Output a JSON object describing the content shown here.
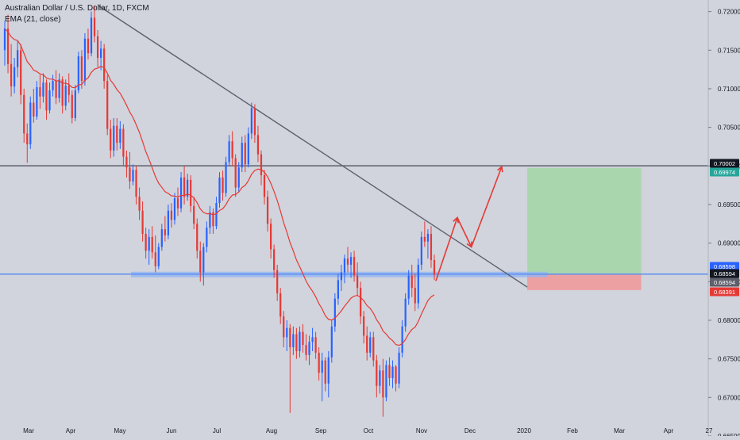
{
  "legend": {
    "title": "Australian Dollar / U.S. Dollar, 1D, FXCM",
    "indicator": "EMA (21, close)"
  },
  "colors": {
    "background": "#d1d4dc",
    "up": "#2962ff",
    "down": "#e53935",
    "ema": "#e53935",
    "trendline": "#5d606b",
    "resistance": "#5d606b",
    "support": "#5b8ef0",
    "support_zone": "#8fb4f5",
    "target_zone": "#a5d6a7",
    "stop_zone": "#ef9a9a",
    "arrow": "#e53935"
  },
  "chart_data": {
    "type": "candlestick",
    "symbol": "AUDUSD",
    "timeframe": "1D",
    "source": "FXCM",
    "x_axis": [
      "Mar",
      "Apr",
      "May",
      "Jun",
      "Jul",
      "Aug",
      "Sep",
      "Oct",
      "Nov",
      "Dec",
      "2020",
      "Feb",
      "Mar",
      "Apr",
      "27"
    ],
    "y_axis": [
      "0.72000",
      "0.71500",
      "0.71000",
      "0.70500",
      "0.70000",
      "0.69500",
      "0.69000",
      "0.68500",
      "0.68000",
      "0.67500",
      "0.67000",
      "0.66500"
    ],
    "ylim": [
      0.665,
      0.7215
    ],
    "price_tags": [
      {
        "label": "0.70002",
        "value": 0.70002,
        "color": "#131722"
      },
      {
        "label": "0.69974",
        "value": 0.69974,
        "color": "#26a69a"
      },
      {
        "label": "0.68598",
        "value": 0.68598,
        "color": "#2962ff"
      },
      {
        "label": "0.68594",
        "value": 0.68594,
        "color": "#131722"
      },
      {
        "label": "0.68594",
        "value": 0.68594,
        "color": "#5d606b"
      },
      {
        "label": "0.68391",
        "value": 0.68391,
        "color": "#e53935"
      }
    ],
    "resistance_level": 0.70002,
    "support_level": 0.68598,
    "trendline": {
      "from": {
        "x": 0.1325,
        "y": 0.7208
      },
      "to": {
        "x": 0.7125,
        "y": 0.6843
      }
    },
    "position": {
      "x_start": 0.7125,
      "x_end": 0.8665,
      "entry": 0.68594,
      "target": 0.69974,
      "stop": 0.68391
    },
    "projected_path": [
      {
        "x": 0.589,
        "y": 0.6851
      },
      {
        "x": 0.618,
        "y": 0.6933
      },
      {
        "x": 0.637,
        "y": 0.6895
      },
      {
        "x": 0.678,
        "y": 0.6999
      }
    ],
    "ema_period": 21,
    "candles": [
      [
        0.715,
        0.7188,
        0.713,
        0.7178
      ],
      [
        0.7178,
        0.7196,
        0.712,
        0.7132
      ],
      [
        0.7132,
        0.7158,
        0.709,
        0.7103
      ],
      [
        0.7103,
        0.714,
        0.7094,
        0.7128
      ],
      [
        0.7128,
        0.7162,
        0.7115,
        0.715
      ],
      [
        0.715,
        0.7158,
        0.708,
        0.7092
      ],
      [
        0.7092,
        0.71,
        0.703,
        0.7042
      ],
      [
        0.7042,
        0.7055,
        0.7004,
        0.7028
      ],
      [
        0.7028,
        0.709,
        0.7022,
        0.7082
      ],
      [
        0.7082,
        0.71,
        0.7056,
        0.7064
      ],
      [
        0.7064,
        0.711,
        0.706,
        0.7102
      ],
      [
        0.7102,
        0.7118,
        0.7074,
        0.709
      ],
      [
        0.709,
        0.712,
        0.7082,
        0.7108
      ],
      [
        0.7108,
        0.7112,
        0.706,
        0.7072
      ],
      [
        0.7072,
        0.7108,
        0.7068,
        0.7098
      ],
      [
        0.7098,
        0.7118,
        0.709,
        0.711
      ],
      [
        0.711,
        0.7124,
        0.708,
        0.7088
      ],
      [
        0.7088,
        0.712,
        0.7082,
        0.7112
      ],
      [
        0.7112,
        0.7116,
        0.7068,
        0.7078
      ],
      [
        0.7078,
        0.7112,
        0.7072,
        0.7104
      ],
      [
        0.7104,
        0.712,
        0.7082,
        0.7092
      ],
      [
        0.7092,
        0.7098,
        0.7055,
        0.7062
      ],
      [
        0.7062,
        0.7105,
        0.7058,
        0.7098
      ],
      [
        0.7098,
        0.7148,
        0.7094,
        0.7142
      ],
      [
        0.7142,
        0.715,
        0.71,
        0.711
      ],
      [
        0.711,
        0.7172,
        0.7104,
        0.7165
      ],
      [
        0.7165,
        0.7178,
        0.7138,
        0.7146
      ],
      [
        0.7146,
        0.72,
        0.7142,
        0.7192
      ],
      [
        0.7192,
        0.7208,
        0.716,
        0.7168
      ],
      [
        0.7168,
        0.7176,
        0.7128,
        0.714
      ],
      [
        0.714,
        0.7162,
        0.7124,
        0.7152
      ],
      [
        0.7152,
        0.7158,
        0.71,
        0.711
      ],
      [
        0.711,
        0.7118,
        0.704,
        0.7048
      ],
      [
        0.7048,
        0.706,
        0.701,
        0.702
      ],
      [
        0.702,
        0.7062,
        0.7012,
        0.7052
      ],
      [
        0.7052,
        0.7062,
        0.702,
        0.703
      ],
      [
        0.703,
        0.7058,
        0.7022,
        0.7048
      ],
      [
        0.7048,
        0.7054,
        0.7,
        0.7012
      ],
      [
        0.7012,
        0.702,
        0.6985,
        0.6998
      ],
      [
        0.6998,
        0.7018,
        0.697,
        0.698
      ],
      [
        0.698,
        0.7002,
        0.6975,
        0.6995
      ],
      [
        0.6995,
        0.7,
        0.695,
        0.696
      ],
      [
        0.696,
        0.6972,
        0.693,
        0.6942
      ],
      [
        0.6942,
        0.6954,
        0.6902,
        0.6912
      ],
      [
        0.6912,
        0.692,
        0.688,
        0.689
      ],
      [
        0.689,
        0.6918,
        0.6872,
        0.6908
      ],
      [
        0.6908,
        0.6922,
        0.688,
        0.6888
      ],
      [
        0.6888,
        0.691,
        0.6862,
        0.687
      ],
      [
        0.687,
        0.69,
        0.6866,
        0.6895
      ],
      [
        0.6895,
        0.6925,
        0.689,
        0.6918
      ],
      [
        0.6918,
        0.6935,
        0.6902,
        0.691
      ],
      [
        0.691,
        0.695,
        0.6905,
        0.6942
      ],
      [
        0.6942,
        0.6952,
        0.692,
        0.693
      ],
      [
        0.693,
        0.6965,
        0.6924,
        0.6958
      ],
      [
        0.6958,
        0.6972,
        0.6935,
        0.6945
      ],
      [
        0.6945,
        0.6992,
        0.694,
        0.6985
      ],
      [
        0.6985,
        0.7,
        0.695,
        0.696
      ],
      [
        0.696,
        0.699,
        0.6955,
        0.6982
      ],
      [
        0.6982,
        0.6988,
        0.694,
        0.6948
      ],
      [
        0.6948,
        0.696,
        0.6918,
        0.6925
      ],
      [
        0.6925,
        0.6932,
        0.688,
        0.689
      ],
      [
        0.689,
        0.6902,
        0.685,
        0.6862
      ],
      [
        0.6862,
        0.69,
        0.6845,
        0.6895
      ],
      [
        0.6895,
        0.6928,
        0.6888,
        0.692
      ],
      [
        0.692,
        0.6948,
        0.6912,
        0.694
      ],
      [
        0.694,
        0.6945,
        0.6912,
        0.6922
      ],
      [
        0.6922,
        0.696,
        0.6918,
        0.6952
      ],
      [
        0.6952,
        0.6992,
        0.6946,
        0.6985
      ],
      [
        0.6985,
        0.6994,
        0.6955,
        0.6965
      ],
      [
        0.6965,
        0.7012,
        0.696,
        0.7005
      ],
      [
        0.7005,
        0.704,
        0.7,
        0.7032
      ],
      [
        0.7032,
        0.7045,
        0.7,
        0.701
      ],
      [
        0.701,
        0.7015,
        0.696,
        0.6972
      ],
      [
        0.6972,
        0.7005,
        0.6966,
        0.6998
      ],
      [
        0.6998,
        0.7038,
        0.6992,
        0.703
      ],
      [
        0.703,
        0.704,
        0.6992,
        0.7002
      ],
      [
        0.7002,
        0.705,
        0.6998,
        0.7042
      ],
      [
        0.7042,
        0.7082,
        0.7035,
        0.7075
      ],
      [
        0.7075,
        0.708,
        0.703,
        0.704
      ],
      [
        0.704,
        0.7052,
        0.7005,
        0.7015
      ],
      [
        0.7015,
        0.702,
        0.6975,
        0.6988
      ],
      [
        0.6988,
        0.6995,
        0.695,
        0.696
      ],
      [
        0.696,
        0.6968,
        0.6915,
        0.6925
      ],
      [
        0.6925,
        0.6932,
        0.688,
        0.6892
      ],
      [
        0.6892,
        0.6898,
        0.6855,
        0.6865
      ],
      [
        0.6865,
        0.6872,
        0.6825,
        0.6835
      ],
      [
        0.6835,
        0.6842,
        0.6795,
        0.6805
      ],
      [
        0.6805,
        0.6812,
        0.6765,
        0.6778
      ],
      [
        0.6778,
        0.68,
        0.676,
        0.679
      ],
      [
        0.679,
        0.6795,
        0.668,
        0.6765
      ],
      [
        0.6765,
        0.6792,
        0.6755,
        0.6782
      ],
      [
        0.6782,
        0.679,
        0.675,
        0.676
      ],
      [
        0.676,
        0.6792,
        0.6752,
        0.6785
      ],
      [
        0.6785,
        0.6795,
        0.6758,
        0.6768
      ],
      [
        0.6768,
        0.6782,
        0.6748,
        0.6755
      ],
      [
        0.6755,
        0.678,
        0.6742,
        0.6772
      ],
      [
        0.6772,
        0.679,
        0.676,
        0.6778
      ],
      [
        0.6778,
        0.6785,
        0.675,
        0.6758
      ],
      [
        0.6758,
        0.6765,
        0.6722,
        0.6732
      ],
      [
        0.6732,
        0.6758,
        0.6695,
        0.6748
      ],
      [
        0.6748,
        0.6752,
        0.6708,
        0.6718
      ],
      [
        0.6718,
        0.676,
        0.67,
        0.6752
      ],
      [
        0.6752,
        0.68,
        0.6745,
        0.6792
      ],
      [
        0.6792,
        0.6835,
        0.6785,
        0.6828
      ],
      [
        0.6828,
        0.686,
        0.682,
        0.6852
      ],
      [
        0.6852,
        0.6872,
        0.6838,
        0.6862
      ],
      [
        0.6862,
        0.6885,
        0.6848,
        0.688
      ],
      [
        0.688,
        0.6895,
        0.6862,
        0.6872
      ],
      [
        0.6872,
        0.6888,
        0.6855,
        0.6882
      ],
      [
        0.6882,
        0.689,
        0.685,
        0.6858
      ],
      [
        0.6858,
        0.6875,
        0.6832,
        0.6842
      ],
      [
        0.6842,
        0.685,
        0.6795,
        0.6805
      ],
      [
        0.6805,
        0.6812,
        0.677,
        0.678
      ],
      [
        0.678,
        0.6792,
        0.6748,
        0.6758
      ],
      [
        0.6758,
        0.6785,
        0.6752,
        0.6778
      ],
      [
        0.6778,
        0.6785,
        0.674,
        0.6748
      ],
      [
        0.6748,
        0.6755,
        0.67,
        0.6715
      ],
      [
        0.6715,
        0.6742,
        0.6705,
        0.6735
      ],
      [
        0.6735,
        0.675,
        0.6675,
        0.67
      ],
      [
        0.67,
        0.6748,
        0.6695,
        0.6742
      ],
      [
        0.6742,
        0.6752,
        0.6715,
        0.6725
      ],
      [
        0.6725,
        0.6748,
        0.6712,
        0.674
      ],
      [
        0.674,
        0.6742,
        0.6708,
        0.6718
      ],
      [
        0.6718,
        0.6765,
        0.6712,
        0.6758
      ],
      [
        0.6758,
        0.68,
        0.6752,
        0.6792
      ],
      [
        0.6792,
        0.6835,
        0.6785,
        0.6828
      ],
      [
        0.6828,
        0.6865,
        0.682,
        0.6858
      ],
      [
        0.6858,
        0.6872,
        0.683,
        0.6842
      ],
      [
        0.6842,
        0.686,
        0.6812,
        0.6822
      ],
      [
        0.6822,
        0.688,
        0.6815,
        0.6872
      ],
      [
        0.6872,
        0.6915,
        0.6865,
        0.6908
      ],
      [
        0.6908,
        0.6928,
        0.6895,
        0.6902
      ],
      [
        0.6902,
        0.6918,
        0.688,
        0.6912
      ],
      [
        0.6912,
        0.6922,
        0.6868,
        0.6878
      ],
      [
        0.6878,
        0.6885,
        0.6852,
        0.6859
      ]
    ]
  }
}
